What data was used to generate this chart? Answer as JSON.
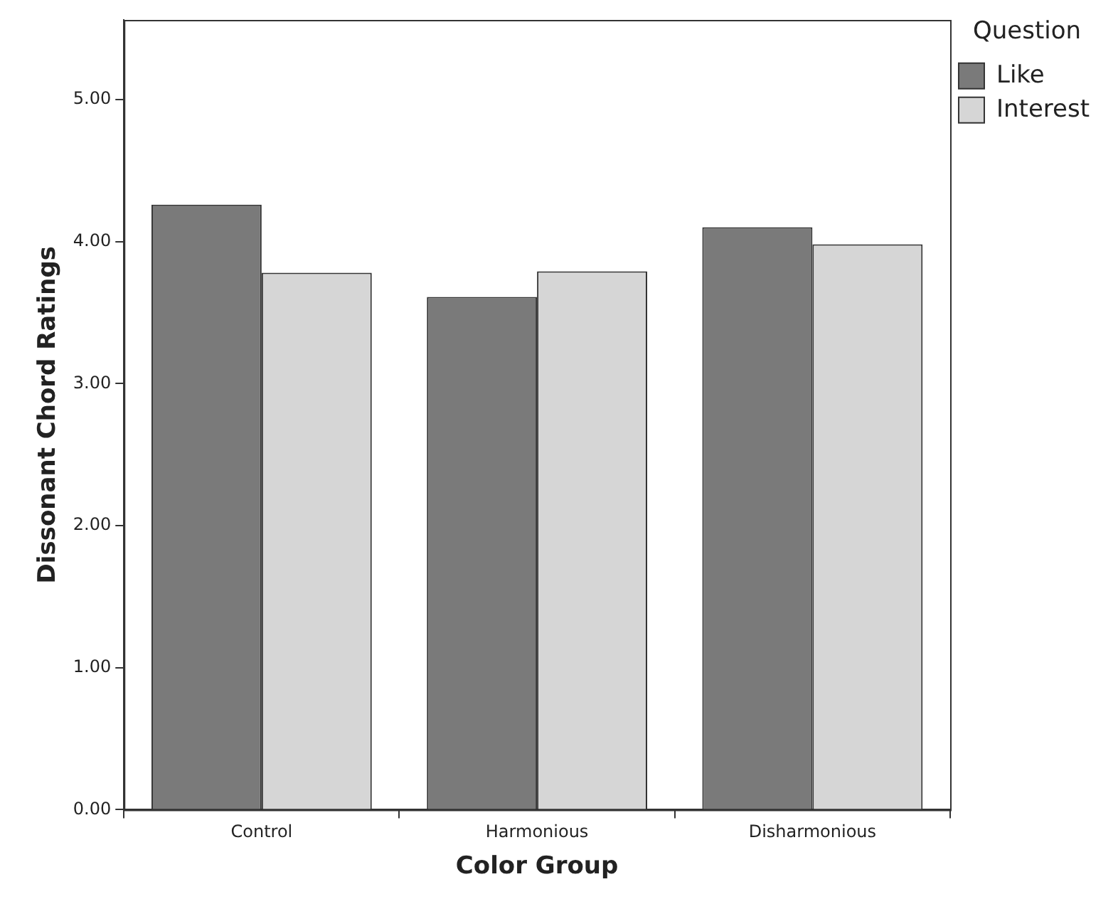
{
  "chart_data": {
    "type": "bar",
    "xlabel": "Color Group",
    "ylabel": "Dissonant Chord Ratings",
    "legend_title": "Question",
    "categories": [
      "Control",
      "Harmonious",
      "Disharmonious"
    ],
    "series": [
      {
        "name": "Like",
        "color": "#7a7a7a",
        "values": [
          4.26,
          3.61,
          4.1
        ]
      },
      {
        "name": "Interest",
        "color": "#d6d6d6",
        "values": [
          3.78,
          3.79,
          3.98
        ]
      }
    ],
    "ylim": [
      0,
      5.56
    ],
    "yticks": [
      {
        "value": 0,
        "label": "0.00"
      },
      {
        "value": 1,
        "label": "1.00"
      },
      {
        "value": 2,
        "label": "2.00"
      },
      {
        "value": 3,
        "label": "3.00"
      },
      {
        "value": 4,
        "label": "4.00"
      },
      {
        "value": 5,
        "label": "5.00"
      }
    ],
    "grid": false,
    "legend": "top right"
  }
}
